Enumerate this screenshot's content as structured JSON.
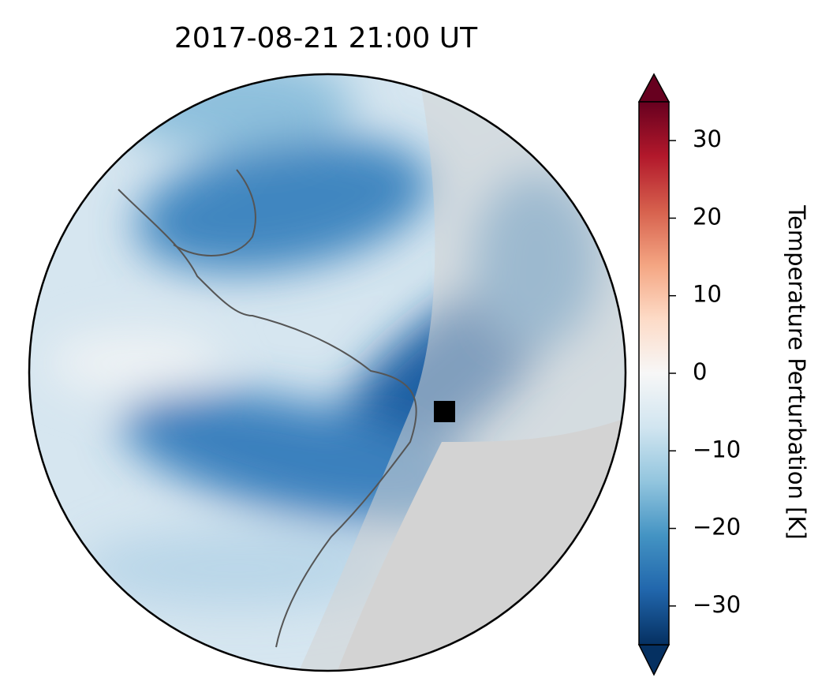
{
  "title": "2017-08-21  21:00 UT",
  "colorbar": {
    "label": "Temperature Perturbation [K]",
    "lim": [
      -35,
      35
    ],
    "ticks": [
      {
        "value": -30,
        "label": "−30"
      },
      {
        "value": -20,
        "label": "−20"
      },
      {
        "value": -10,
        "label": "−10"
      },
      0,
      10,
      20,
      30
    ],
    "colors": [
      "#053061",
      "#2166ac",
      "#4393c3",
      "#92c5de",
      "#d1e5f0",
      "#f7f7f7",
      "#fddbc7",
      "#f4a582",
      "#d6604d",
      "#b2182b",
      "#67001f"
    ]
  }
}
